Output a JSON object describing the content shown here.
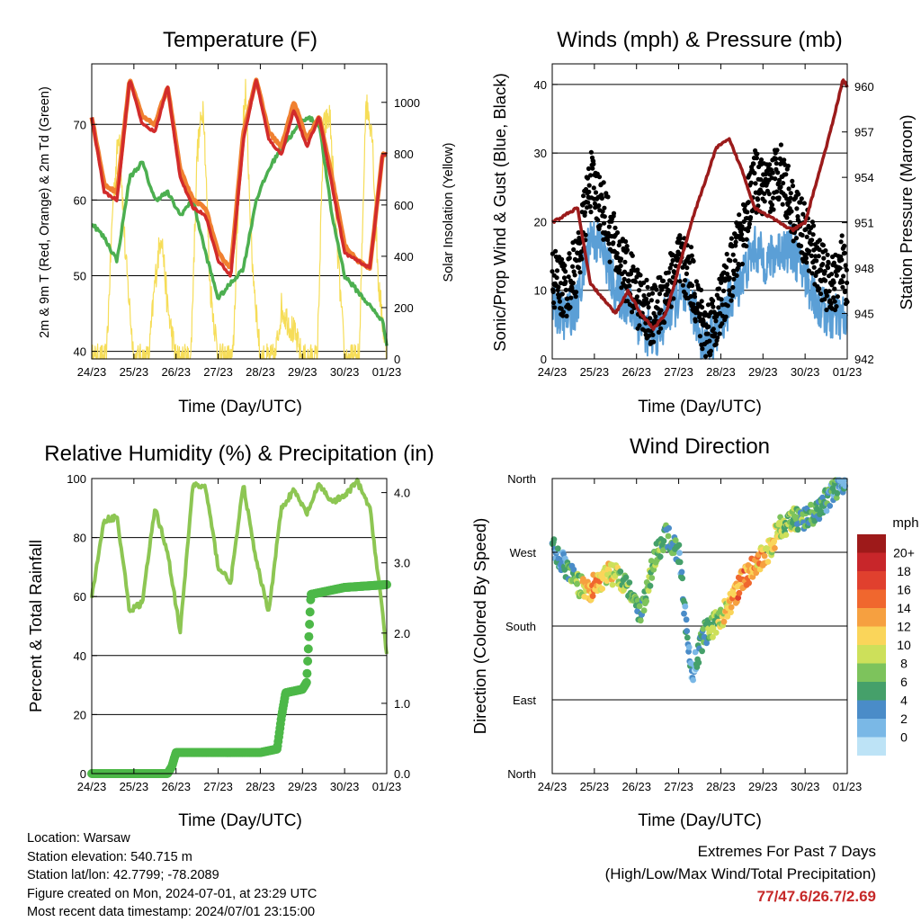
{
  "colors": {
    "temp2m": "#d22b2b",
    "temp9m": "#f08030",
    "dew": "#4caf50",
    "solar": "#f6dd58",
    "wind": "#5b9fd6",
    "gust": "#000000",
    "pressure": "#9b1b1b",
    "rh": "#8dc653",
    "rain": "#4db848",
    "extreme": "#c62828"
  },
  "x_ticks": [
    "24/23",
    "25/23",
    "26/23",
    "27/23",
    "28/23",
    "29/23",
    "30/23",
    "01/23"
  ],
  "x_label": "Time (Day/UTC)",
  "panels": {
    "temperature": {
      "title": "Temperature (F)",
      "ylabel_left": "2m & 9m T (Red, Orange) & 2m Td (Green)",
      "ylabel_right": "Solar Insolation (Yellow)",
      "yticks_left": [
        "40",
        "50",
        "60",
        "70"
      ],
      "yticks_right": [
        "0",
        "200",
        "400",
        "600",
        "800",
        "1000"
      ]
    },
    "winds": {
      "title": "Winds (mph) & Pressure (mb)",
      "ylabel_left": "Sonic/Prop Wind & Gust (Blue, Black)",
      "ylabel_right": "Station Pressure (Maroon)",
      "yticks_left": [
        "0",
        "10",
        "20",
        "30",
        "40"
      ],
      "yticks_right": [
        "942",
        "945",
        "948",
        "951",
        "954",
        "957",
        "960"
      ]
    },
    "humidity": {
      "title": "Relative Humidity (%) & Precipitation (in)",
      "ylabel_left": "Percent & Total Rainfall",
      "yticks_left": [
        "0",
        "20",
        "40",
        "60",
        "80",
        "100"
      ],
      "yticks_right": [
        "0.0",
        "1.0",
        "2.0",
        "3.0",
        "4.0"
      ]
    },
    "direction": {
      "title": "Wind Direction",
      "ylabel_left": "Direction (Colored By Speed)",
      "yticks_left": [
        "North",
        "East",
        "South",
        "West",
        "North"
      ],
      "legend_title": "mph",
      "legend_labels": [
        "20+",
        "18",
        "16",
        "14",
        "12",
        "10",
        "8",
        "6",
        "4",
        "2",
        "0"
      ],
      "legend_colors": [
        "#9e1a1a",
        "#c8262a",
        "#e0402e",
        "#f0672e",
        "#f6a040",
        "#fad55a",
        "#cde05a",
        "#7dc35c",
        "#45a06a",
        "#4a8cc8",
        "#7ab8e6",
        "#bde3f6"
      ]
    }
  },
  "chart_data": [
    {
      "type": "line",
      "title": "Temperature (F)",
      "xlabel": "Time (Day/UTC)",
      "ylabel": "2m & 9m T (Red, Orange) & 2m Td (Green)",
      "ylim": [
        39,
        78
      ],
      "y2lim": [
        0,
        1150
      ],
      "x": [
        0,
        0.3,
        0.6,
        0.9,
        1.2,
        1.5,
        1.8,
        2.1,
        2.4,
        2.7,
        3.0,
        3.3,
        3.6,
        3.9,
        4.2,
        4.5,
        4.8,
        5.1,
        5.4,
        5.7,
        6.0,
        6.3,
        6.6,
        6.9,
        7.0
      ],
      "series": [
        {
          "name": "2m T",
          "values": [
            71,
            61,
            60,
            76,
            70,
            69,
            75,
            63,
            59,
            58,
            52,
            50,
            68,
            76,
            68,
            66,
            72,
            67,
            71,
            62,
            53,
            52,
            51,
            66,
            66
          ]
        },
        {
          "name": "9m T",
          "values": [
            71,
            62,
            61,
            76,
            71,
            70,
            75,
            64,
            60,
            59,
            53,
            51,
            69,
            76,
            69,
            67,
            73,
            68,
            71,
            63,
            54,
            52,
            51,
            66,
            66
          ]
        },
        {
          "name": "2m Td",
          "values": [
            57,
            55,
            52,
            63,
            65,
            60,
            61,
            58,
            60,
            53,
            47,
            49,
            51,
            60,
            64,
            67,
            69,
            71,
            70,
            58,
            50,
            48,
            46,
            44,
            41
          ]
        },
        {
          "name": "Solar Insolation",
          "axis": "right",
          "x": [
            0,
            0.35,
            0.5,
            0.65,
            0.8,
            1.0,
            1.35,
            1.5,
            1.65,
            1.8,
            2.0,
            2.35,
            2.5,
            2.65,
            2.8,
            3.0,
            3.35,
            3.5,
            3.65,
            3.8,
            4.0,
            4.35,
            4.5,
            4.65,
            4.8,
            5.0,
            5.35,
            5.5,
            5.65,
            5.8,
            6.0,
            6.35,
            6.5,
            6.65,
            6.8,
            7.0
          ],
          "values": [
            0,
            0,
            600,
            900,
            400,
            0,
            0,
            300,
            500,
            200,
            0,
            0,
            800,
            1000,
            300,
            0,
            0,
            700,
            1050,
            400,
            0,
            0,
            200,
            150,
            100,
            0,
            0,
            900,
            950,
            500,
            0,
            0,
            1000,
            900,
            300,
            0
          ]
        }
      ]
    },
    {
      "type": "line",
      "title": "Winds (mph) & Pressure (mb)",
      "xlabel": "Time (Day/UTC)",
      "ylabel": "Sonic/Prop Wind & Gust (Blue, Black)",
      "ylim": [
        0,
        43
      ],
      "y2lim": [
        942,
        961.5
      ],
      "x": [
        0,
        0.3,
        0.6,
        0.9,
        1.2,
        1.5,
        1.8,
        2.1,
        2.4,
        2.7,
        3.0,
        3.3,
        3.6,
        3.9,
        4.2,
        4.5,
        4.8,
        5.1,
        5.4,
        5.7,
        6.0,
        6.3,
        6.6,
        6.9,
        7.0
      ],
      "series": [
        {
          "name": "Wind",
          "values": [
            8,
            6,
            8,
            18,
            16,
            10,
            8,
            5,
            3,
            6,
            9,
            8,
            2,
            4,
            8,
            12,
            16,
            14,
            16,
            16,
            12,
            8,
            6,
            6,
            4
          ]
        },
        {
          "name": "Gust",
          "values": [
            12,
            10,
            14,
            26,
            22,
            16,
            12,
            8,
            6,
            10,
            14,
            12,
            4,
            6,
            12,
            18,
            26,
            24,
            28,
            22,
            18,
            14,
            10,
            14,
            8
          ]
        },
        {
          "name": "Pressure",
          "axis": "right",
          "values": [
            951,
            951.5,
            952,
            947,
            946,
            945,
            946.5,
            945,
            944,
            945,
            948,
            951,
            953.5,
            956,
            956.5,
            954.5,
            952,
            951.5,
            951,
            950.5,
            951,
            954,
            957,
            960.5,
            960
          ]
        }
      ]
    },
    {
      "type": "line",
      "title": "Relative Humidity (%) & Precipitation (in)",
      "xlabel": "Time (Day/UTC)",
      "ylabel": "Percent & Total Rainfall",
      "ylim": [
        0,
        100
      ],
      "y2lim": [
        0,
        4.2
      ],
      "x": [
        0,
        0.3,
        0.6,
        0.9,
        1.2,
        1.5,
        1.8,
        2.1,
        2.4,
        2.7,
        3.0,
        3.3,
        3.6,
        3.9,
        4.2,
        4.5,
        4.8,
        5.1,
        5.4,
        5.7,
        6.0,
        6.3,
        6.6,
        6.9,
        7.0
      ],
      "series": [
        {
          "name": "Relative Humidity",
          "values": [
            60,
            86,
            87,
            55,
            58,
            90,
            75,
            48,
            98,
            97,
            70,
            65,
            98,
            72,
            55,
            90,
            96,
            88,
            98,
            92,
            94,
            99,
            90,
            55,
            40
          ]
        },
        {
          "name": "Total Rainfall",
          "axis": "right",
          "x": [
            0,
            1.8,
            1.9,
            2.0,
            2.3,
            3.0,
            4.0,
            4.4,
            4.5,
            4.6,
            5.0,
            5.1,
            5.2,
            6.0,
            7.0
          ],
          "values": [
            0,
            0,
            0.1,
            0.3,
            0.3,
            0.3,
            0.3,
            0.35,
            0.8,
            1.15,
            1.2,
            1.3,
            2.55,
            2.65,
            2.69
          ]
        }
      ]
    },
    {
      "type": "scatter",
      "title": "Wind Direction",
      "xlabel": "Time (Day/UTC)",
      "ylabel": "Direction (Colored By Speed)",
      "ylim": [
        0,
        360
      ],
      "colorbar": "mph",
      "x": [
        0,
        0.3,
        0.6,
        0.9,
        1.2,
        1.5,
        1.8,
        2.1,
        2.4,
        2.7,
        3.0,
        3.3,
        3.6,
        3.9,
        4.2,
        4.5,
        4.8,
        5.1,
        5.4,
        5.7,
        6.0,
        6.3,
        6.6,
        6.9
      ],
      "direction": [
        275,
        255,
        230,
        225,
        240,
        245,
        230,
        190,
        260,
        290,
        270,
        120,
        170,
        185,
        205,
        235,
        255,
        270,
        300,
        310,
        310,
        320,
        340,
        355
      ],
      "speed": [
        4,
        4,
        8,
        15,
        12,
        10,
        8,
        6,
        8,
        7,
        5,
        3,
        6,
        8,
        13,
        15,
        14,
        12,
        10,
        8,
        6,
        6,
        5,
        4
      ]
    }
  ],
  "footer": {
    "location": "Location: Warsaw",
    "elevation": "Station elevation: 540.715 m",
    "latlon": "Station lat/lon: 42.7799; -78.2089",
    "created": "Figure created on Mon, 2024-07-01, at 23:29 UTC",
    "recent": "Most recent data timestamp: 2024/07/01 23:15:00"
  },
  "extremes": {
    "title": "Extremes For Past 7 Days",
    "subtitle": "(High/Low/Max Wind/Total Precipitation)",
    "values": "77/47.6/26.7/2.69"
  }
}
